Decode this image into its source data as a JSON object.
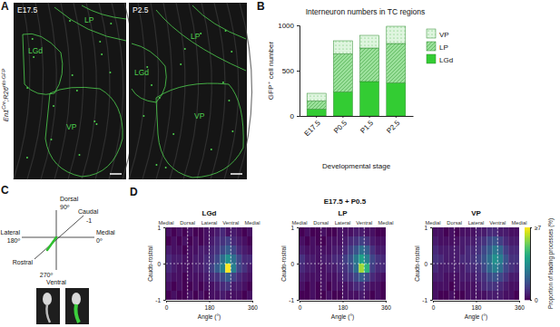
{
  "panel_a": {
    "label": "A",
    "genotype": [
      "En1",
      "Cre",
      ";R26",
      "nls-GFP"
    ],
    "images": [
      {
        "stage": "E17.5",
        "regions": [
          "LP",
          "LGd",
          "VP"
        ]
      },
      {
        "stage": "P2.5",
        "regions": [
          "LP",
          "LGd",
          "VP"
        ]
      }
    ]
  },
  "panel_b": {
    "label": "B"
  },
  "panel_c": {
    "label": "C",
    "texts": [
      "Dorsal",
      "90º",
      "Caudal",
      "-1",
      "Lateral",
      "180º",
      "Medial",
      "0º",
      "Rostral",
      "270º",
      "Ventral"
    ]
  },
  "panel_d": {
    "label": "D",
    "title": "E17.5 + P0.5",
    "colorbar": {
      "range": [
        0,
        7
      ],
      "ticks": [
        0,
        {
          "value": 7,
          "label": "≥7"
        }
      ],
      "label": "Proportion of leading processes (%)"
    }
  },
  "chart_data": [
    {
      "type": "bar",
      "stacked": true,
      "title": "Interneuron numbers in TC regions",
      "x_label": "Developmental stage",
      "y_label": "GFP⁺ cell number",
      "categories": [
        "E17.5",
        "P0.5",
        "P1.5",
        "P2.5"
      ],
      "series": [
        {
          "name": "LGd",
          "color": "#33cc33",
          "values": [
            75,
            265,
            380,
            365
          ]
        },
        {
          "name": "LP",
          "color": "#9be09b",
          "values": [
            90,
            420,
            370,
            435
          ]
        },
        {
          "name": "VP",
          "color": "#dff5df",
          "values": [
            85,
            145,
            140,
            190
          ]
        }
      ],
      "ylim": [
        0,
        1000
      ],
      "yticks": [
        0,
        500,
        1000
      ],
      "legend": "right"
    },
    {
      "type": "heatmap",
      "title": "LGd",
      "x_label": "Angle (°)",
      "y_label": "Caudo-rostral",
      "xlim": [
        0,
        360
      ],
      "xticks": [
        0,
        180,
        360
      ],
      "ylim": [
        -1,
        1
      ],
      "yticks": [
        -1,
        0,
        1
      ],
      "annotations": [
        {
          "text": "Medial",
          "x": 0
        },
        {
          "text": "Dorsal",
          "x": 90
        },
        {
          "text": "Lateral",
          "x": 180
        },
        {
          "text": "Ventral",
          "x": 270
        },
        {
          "text": "Medial",
          "x": 360
        }
      ],
      "x_bins": [
        0,
        22.5,
        45,
        67.5,
        90,
        112.5,
        135,
        157.5,
        180,
        202.5,
        225,
        247.5,
        270,
        292.5,
        315,
        337.5,
        360
      ],
      "y_bins": [
        1,
        0.75,
        0.5,
        0.25,
        0,
        -0.25,
        -0.5,
        -0.75,
        -1
      ],
      "values": [
        [
          0.3,
          0,
          0.3,
          0,
          0.3,
          0,
          0,
          0.3,
          0.3,
          0.5,
          0.8,
          0.3,
          0.5,
          0.3,
          0,
          0.3
        ],
        [
          0,
          0.3,
          0,
          0.3,
          0,
          0.3,
          0,
          0.3,
          0.5,
          0.8,
          1.0,
          1.3,
          0.8,
          0.5,
          0.3,
          0
        ],
        [
          0.5,
          0.3,
          0.3,
          0,
          0.3,
          0.3,
          0.5,
          0.5,
          0.8,
          1.0,
          1.5,
          2.0,
          1.5,
          0.8,
          0.5,
          0.3
        ],
        [
          0.8,
          0.5,
          0.5,
          0.3,
          0.3,
          0.5,
          0.5,
          0.8,
          1.0,
          1.5,
          2.5,
          3.5,
          2.5,
          1.5,
          0.8,
          0.8
        ],
        [
          0.8,
          0.5,
          0.3,
          0.3,
          0.3,
          0.5,
          0.5,
          0.8,
          1.3,
          2.0,
          3.0,
          7.0,
          3.0,
          1.5,
          1.0,
          0.5
        ],
        [
          0.5,
          0.3,
          0.3,
          0,
          0.3,
          0.3,
          0.3,
          0.5,
          0.8,
          1.0,
          1.5,
          2.0,
          1.3,
          0.8,
          0.5,
          0.3
        ],
        [
          0.3,
          0,
          0.3,
          0,
          0,
          0.3,
          0,
          0.3,
          0.3,
          0.5,
          0.8,
          1.0,
          0.5,
          0.5,
          0.3,
          0
        ],
        [
          0,
          0.3,
          0,
          0,
          0.3,
          0,
          0.3,
          0,
          0.3,
          0.3,
          0.5,
          0.3,
          0.3,
          0.3,
          0,
          0.3
        ]
      ]
    },
    {
      "type": "heatmap",
      "title": "LP",
      "x_label": "Angle (°)",
      "y_label": "Caudo-rostral",
      "xlim": [
        0,
        360
      ],
      "xticks": [
        0,
        180,
        360
      ],
      "ylim": [
        -1,
        1
      ],
      "yticks": [
        -1,
        0,
        1
      ],
      "annotations": [
        {
          "text": "Medial",
          "x": 0
        },
        {
          "text": "Dorsal",
          "x": 90
        },
        {
          "text": "Lateral",
          "x": 180
        },
        {
          "text": "Ventral",
          "x": 270
        },
        {
          "text": "Medial",
          "x": 360
        }
      ],
      "x_bins": [
        0,
        22.5,
        45,
        67.5,
        90,
        112.5,
        135,
        157.5,
        180,
        202.5,
        225,
        247.5,
        270,
        292.5,
        315,
        337.5,
        360
      ],
      "y_bins": [
        1,
        0.75,
        0.5,
        0.25,
        0,
        -0.25,
        -0.5,
        -0.75,
        -1
      ],
      "values": [
        [
          0,
          0.3,
          0,
          0,
          0.3,
          0,
          0,
          0.3,
          0.3,
          0.3,
          0.5,
          0.5,
          0.3,
          0.3,
          0,
          0
        ],
        [
          0.3,
          0,
          0.3,
          0,
          0,
          0.3,
          0.3,
          0.3,
          0.5,
          0.8,
          1.0,
          1.3,
          1.0,
          0.5,
          0.3,
          0.3
        ],
        [
          0.5,
          0.3,
          0.3,
          0.3,
          0.3,
          0.3,
          0.5,
          0.5,
          0.8,
          1.3,
          1.8,
          2.5,
          2.0,
          1.0,
          0.5,
          0.5
        ],
        [
          1.0,
          0.5,
          0.5,
          0.3,
          0.5,
          0.5,
          0.8,
          0.8,
          1.3,
          1.8,
          2.8,
          4.0,
          3.0,
          1.5,
          1.0,
          0.8
        ],
        [
          0.8,
          0.5,
          0.5,
          0.3,
          0.3,
          0.5,
          0.5,
          0.8,
          1.0,
          1.5,
          2.5,
          6.0,
          4.5,
          1.3,
          0.8,
          0.8
        ],
        [
          0.5,
          0.3,
          0.3,
          0.3,
          0.3,
          0.3,
          0.3,
          0.5,
          0.8,
          1.0,
          1.5,
          2.0,
          1.5,
          0.8,
          0.5,
          0.3
        ],
        [
          0.3,
          0,
          0.3,
          0,
          0.3,
          0,
          0.3,
          0.3,
          0.3,
          0.5,
          0.8,
          0.8,
          0.5,
          0.3,
          0.3,
          0
        ],
        [
          0,
          0,
          0.3,
          0,
          0,
          0.3,
          0,
          0,
          0.3,
          0.3,
          0.3,
          0.5,
          0.3,
          0,
          0.3,
          0
        ]
      ]
    },
    {
      "type": "heatmap",
      "title": "VP",
      "x_label": "Angle (°)",
      "y_label": "Caudo-rostral",
      "xlim": [
        0,
        360
      ],
      "xticks": [
        0,
        180,
        360
      ],
      "ylim": [
        -1,
        1
      ],
      "yticks": [
        -1,
        0,
        1
      ],
      "annotations": [
        {
          "text": "Medial",
          "x": 0
        },
        {
          "text": "Dorsal",
          "x": 90
        },
        {
          "text": "Lateral",
          "x": 180
        },
        {
          "text": "Ventral",
          "x": 270
        },
        {
          "text": "Medial",
          "x": 360
        }
      ],
      "x_bins": [
        0,
        22.5,
        45,
        67.5,
        90,
        112.5,
        135,
        157.5,
        180,
        202.5,
        225,
        247.5,
        270,
        292.5,
        315,
        337.5,
        360
      ],
      "y_bins": [
        1,
        0.75,
        0.5,
        0.25,
        0,
        -0.25,
        -0.5,
        -0.75,
        -1
      ],
      "values": [
        [
          0.3,
          0.3,
          0,
          0.3,
          0,
          0.3,
          0.3,
          0.3,
          0.5,
          0.5,
          0.8,
          0.8,
          0.5,
          0.5,
          0.3,
          0.3
        ],
        [
          0.5,
          0.3,
          0.3,
          0.3,
          0.3,
          0.5,
          0.5,
          0.5,
          0.8,
          1.0,
          1.5,
          1.8,
          1.3,
          0.8,
          0.5,
          0.5
        ],
        [
          0.8,
          0.5,
          0.5,
          0.5,
          0.5,
          0.5,
          0.8,
          0.8,
          1.0,
          1.5,
          2.0,
          2.8,
          2.3,
          1.3,
          0.8,
          0.8
        ],
        [
          1.0,
          0.8,
          0.5,
          0.5,
          0.5,
          0.8,
          0.8,
          1.0,
          1.3,
          1.8,
          2.5,
          3.5,
          3.0,
          1.8,
          1.0,
          1.0
        ],
        [
          0.8,
          0.5,
          0.5,
          0.5,
          0.5,
          0.5,
          0.8,
          0.8,
          1.0,
          1.5,
          2.3,
          3.0,
          2.5,
          1.5,
          1.0,
          0.8
        ],
        [
          0.5,
          0.5,
          0.3,
          0.3,
          0.3,
          0.5,
          0.5,
          0.5,
          0.8,
          1.0,
          1.5,
          1.8,
          1.5,
          1.0,
          0.5,
          0.5
        ],
        [
          0.3,
          0.3,
          0.3,
          0,
          0.3,
          0.3,
          0.3,
          0.3,
          0.5,
          0.8,
          1.0,
          1.0,
          0.8,
          0.5,
          0.3,
          0.3
        ],
        [
          0.3,
          0,
          0,
          0.3,
          0,
          0,
          0.3,
          0.3,
          0.3,
          0.3,
          0.5,
          0.5,
          0.5,
          0.3,
          0.3,
          0
        ]
      ]
    }
  ]
}
